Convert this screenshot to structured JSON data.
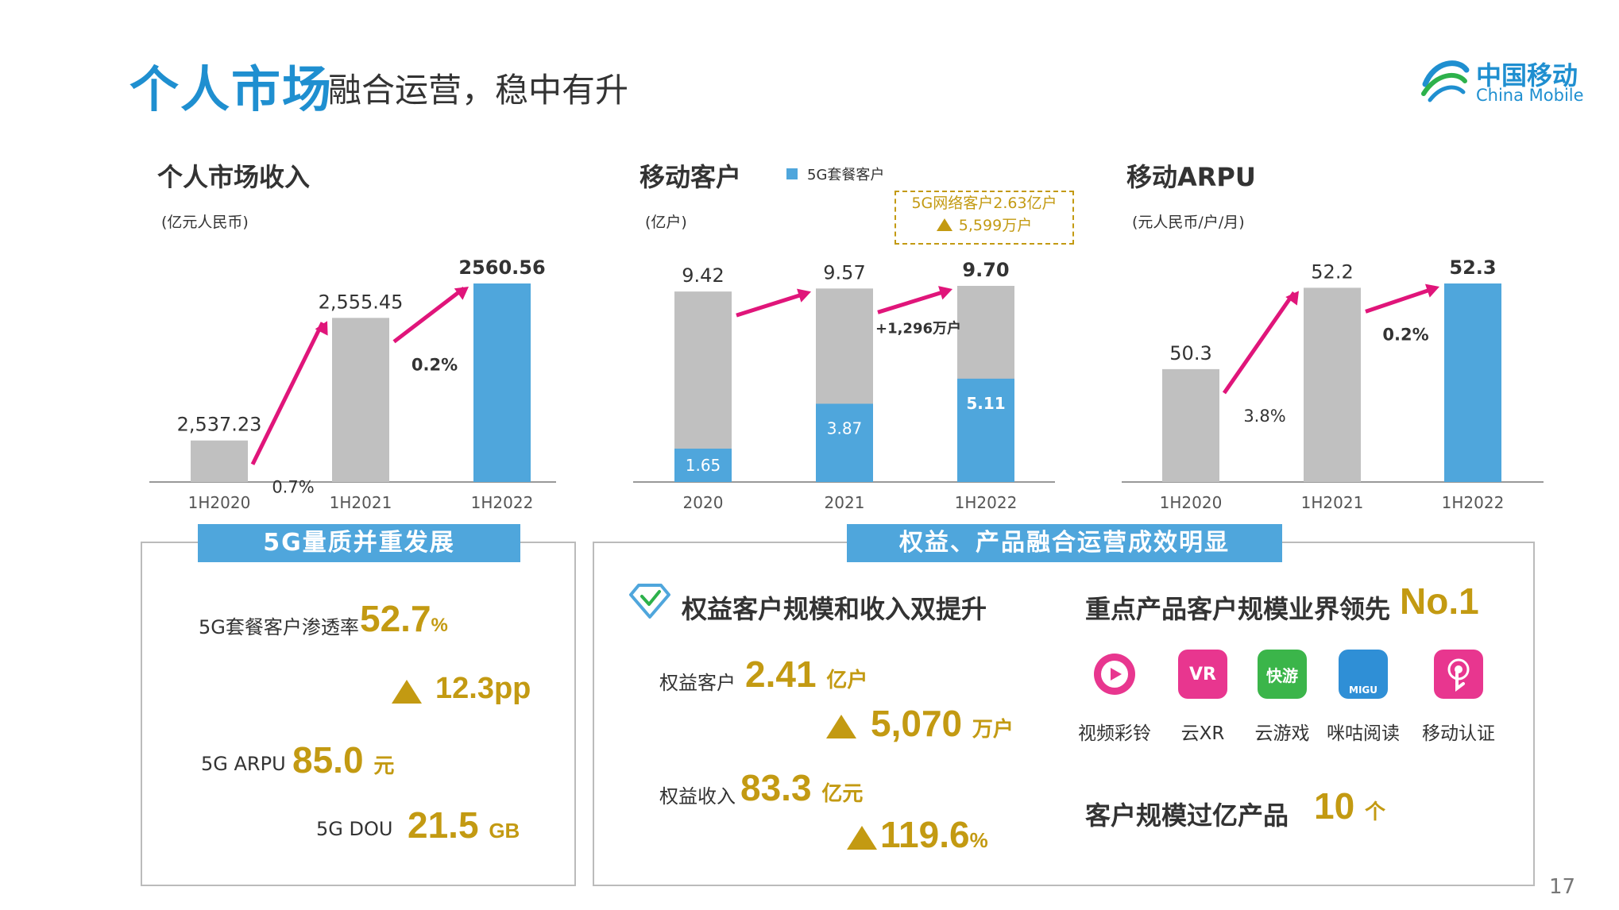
{
  "header": {
    "title": "个人市场",
    "subtitle": "融合运营，稳中有升",
    "logo_cn": "中国移动",
    "logo_en": "China Mobile",
    "page_number": "17"
  },
  "colors": {
    "blue": "#4fa6dc",
    "gray": "#c0c0c0",
    "arrow": "#e0157a",
    "gold": "#c39a12",
    "title_blue": "#1f8fd0"
  },
  "chart_data": [
    {
      "type": "bar",
      "title": "个人市场收入",
      "unit": "(亿元人民币)",
      "categories": [
        "1H2020",
        "1H2021",
        "1H2022"
      ],
      "values": [
        2537.23,
        2555.45,
        2560.56
      ],
      "value_labels": [
        "2,537.23",
        "2,555.45",
        "2560.56"
      ],
      "growth_labels": [
        "0.7%",
        "0.2%"
      ],
      "highlight_last": true
    },
    {
      "type": "bar",
      "title": "移动客户",
      "unit": "(亿户)",
      "legend": "5G套餐客户",
      "categories": [
        "2020",
        "2021",
        "1H2022"
      ],
      "totals": [
        9.42,
        9.57,
        9.7
      ],
      "total_labels": [
        "9.42",
        "9.57",
        "9.70"
      ],
      "series": [
        {
          "name": "5G套餐客户",
          "values": [
            1.65,
            3.87,
            5.11
          ],
          "labels": [
            "1.65",
            "3.87",
            "5.11"
          ]
        }
      ],
      "growth_labels": [
        "",
        "+1,296万户"
      ],
      "callout": {
        "line1": "5G网络客户2.63亿户",
        "line2": "5,599万户"
      }
    },
    {
      "type": "bar",
      "title": "移动ARPU",
      "unit": "(元人民币/户/月)",
      "categories": [
        "1H2020",
        "1H2021",
        "1H2022"
      ],
      "values": [
        50.3,
        52.2,
        52.3
      ],
      "value_labels": [
        "50.3",
        "52.2",
        "52.3"
      ],
      "growth_labels": [
        "3.8%",
        "0.2%"
      ],
      "highlight_last": true
    }
  ],
  "left_panel": {
    "banner": "5G量质并重发展",
    "penetration_label": "5G套餐客户渗透率",
    "penetration_value": "52.7",
    "penetration_unit": "%",
    "penetration_change": "12.3pp",
    "arpu_label": "5G ARPU",
    "arpu_value": "85.0",
    "arpu_unit": "元",
    "dou_label": "5G DOU",
    "dou_value": "21.5",
    "dou_unit": "GB"
  },
  "right_panel": {
    "banner": "权益、产品融合运营成效明显",
    "rights_title": "权益客户规模和收入双提升",
    "rights_customers_label": "权益客户",
    "rights_customers_value": "2.41",
    "rights_customers_unit": "亿户",
    "rights_customers_change": "5,070",
    "rights_customers_change_unit": "万户",
    "rights_revenue_label": "权益收入",
    "rights_revenue_value": "83.3",
    "rights_revenue_unit": "亿元",
    "rights_revenue_change": "119.6",
    "rights_revenue_change_unit": "%",
    "products_title": "重点产品客户规模业界领先",
    "products_rank": "No.1",
    "apps": [
      {
        "name": "视频彩铃",
        "icon": "video-ringtone-icon"
      },
      {
        "name": "云XR",
        "icon": "cloud-xr-icon",
        "glyph": "VR"
      },
      {
        "name": "云游戏",
        "icon": "cloud-game-icon",
        "glyph": "快游"
      },
      {
        "name": "咪咕阅读",
        "icon": "migu-reading-icon",
        "glyph": "MIGU"
      },
      {
        "name": "移动认证",
        "icon": "mobile-auth-icon"
      }
    ],
    "billion_products_label": "客户规模过亿产品",
    "billion_products_value": "10",
    "billion_products_unit": "个"
  }
}
